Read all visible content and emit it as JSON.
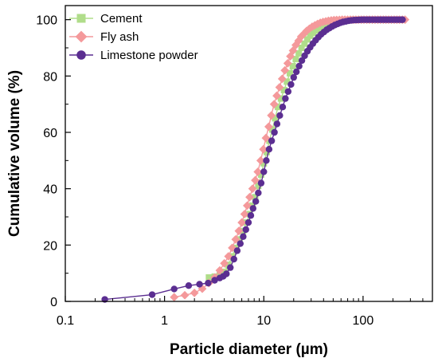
{
  "chart_data": {
    "type": "scatter",
    "title": "",
    "xlabel": "Particle diameter (µm)",
    "ylabel": "Cumulative volume (%)",
    "xscale": "log",
    "xlim": [
      0.1,
      500
    ],
    "ylim": [
      0,
      105
    ],
    "x_ticks": [
      {
        "value": 0.1,
        "label": "0.1"
      },
      {
        "value": 1,
        "label": "1"
      },
      {
        "value": 10,
        "label": "10"
      },
      {
        "value": 100,
        "label": "100"
      }
    ],
    "y_ticks": [
      {
        "value": 0,
        "label": "0"
      },
      {
        "value": 20,
        "label": "20"
      },
      {
        "value": 40,
        "label": "40"
      },
      {
        "value": 60,
        "label": "60"
      },
      {
        "value": 80,
        "label": "80"
      },
      {
        "value": 100,
        "label": "100"
      }
    ],
    "grid": false,
    "legend_position": "top-left",
    "series": [
      {
        "name": "Cement",
        "color": "#b0dd8a",
        "marker": "square",
        "points": [
          [
            2.8,
            8.5
          ],
          [
            3.2,
            8.8
          ],
          [
            3.6,
            9.3
          ],
          [
            4.0,
            10.5
          ],
          [
            4.4,
            13
          ],
          [
            4.8,
            16
          ],
          [
            5.2,
            19
          ],
          [
            5.7,
            22
          ],
          [
            6.2,
            25
          ],
          [
            6.7,
            28
          ],
          [
            7.2,
            31
          ],
          [
            7.7,
            34
          ],
          [
            8.2,
            37
          ],
          [
            8.8,
            41
          ],
          [
            9.4,
            45
          ],
          [
            10,
            49
          ],
          [
            10.7,
            53
          ],
          [
            11.4,
            57
          ],
          [
            12.2,
            61
          ],
          [
            13,
            65
          ],
          [
            13.9,
            69
          ],
          [
            14.9,
            72
          ],
          [
            16,
            75
          ],
          [
            17.1,
            78
          ],
          [
            18.3,
            81
          ],
          [
            19.6,
            83.5
          ],
          [
            21,
            86
          ],
          [
            22.5,
            88
          ],
          [
            24,
            90
          ],
          [
            25.7,
            91.5
          ],
          [
            27.5,
            93
          ],
          [
            29.4,
            94.3
          ],
          [
            31.5,
            95.3
          ],
          [
            33.7,
            96.2
          ],
          [
            36,
            97
          ],
          [
            38.5,
            97.6
          ],
          [
            41.2,
            98.1
          ],
          [
            44.1,
            98.5
          ],
          [
            47.2,
            98.9
          ],
          [
            50.5,
            99.2
          ],
          [
            54,
            99.4
          ],
          [
            57.8,
            99.6
          ],
          [
            61.8,
            99.75
          ],
          [
            66.1,
            99.85
          ],
          [
            70.7,
            99.9
          ],
          [
            75.6,
            99.95
          ],
          [
            80.9,
            100
          ],
          [
            86.6,
            100
          ],
          [
            92.6,
            100
          ],
          [
            99,
            100
          ],
          [
            106,
            100
          ],
          [
            113,
            100
          ],
          [
            121,
            100
          ],
          [
            130,
            100
          ],
          [
            139,
            100
          ],
          [
            148,
            100
          ],
          [
            159,
            100
          ],
          [
            170,
            100
          ],
          [
            182,
            100
          ],
          [
            194,
            100
          ],
          [
            208,
            100
          ],
          [
            222,
            100
          ],
          [
            238,
            100
          ],
          [
            254,
            100
          ]
        ]
      },
      {
        "name": "Fly ash",
        "color": "#f4999b",
        "marker": "diamond",
        "points": [
          [
            1.25,
            1.5
          ],
          [
            1.6,
            2.2
          ],
          [
            2.0,
            3.0
          ],
          [
            2.4,
            4.5
          ],
          [
            2.8,
            6.5
          ],
          [
            3.2,
            8.5
          ],
          [
            3.6,
            11
          ],
          [
            4.0,
            13.5
          ],
          [
            4.4,
            16
          ],
          [
            4.8,
            19
          ],
          [
            5.2,
            22
          ],
          [
            5.6,
            25
          ],
          [
            6.0,
            28
          ],
          [
            6.4,
            31
          ],
          [
            6.8,
            34
          ],
          [
            7.2,
            37
          ],
          [
            7.7,
            40
          ],
          [
            8.2,
            43
          ],
          [
            8.7,
            46
          ],
          [
            9.3,
            50
          ],
          [
            9.9,
            54
          ],
          [
            10.5,
            58
          ],
          [
            11.2,
            62
          ],
          [
            11.9,
            66
          ],
          [
            12.7,
            70
          ],
          [
            13.5,
            73
          ],
          [
            14.4,
            76
          ],
          [
            15.3,
            79
          ],
          [
            16.3,
            82
          ],
          [
            17.4,
            84.5
          ],
          [
            18.5,
            87
          ],
          [
            19.7,
            89
          ],
          [
            21,
            91
          ],
          [
            22.4,
            92.5
          ],
          [
            23.8,
            94
          ],
          [
            25.4,
            95
          ],
          [
            27,
            96
          ],
          [
            28.8,
            96.8
          ],
          [
            30.7,
            97.5
          ],
          [
            32.7,
            98
          ],
          [
            34.8,
            98.5
          ],
          [
            37.1,
            98.9
          ],
          [
            39.5,
            99.2
          ],
          [
            42.1,
            99.4
          ],
          [
            44.8,
            99.6
          ],
          [
            47.8,
            99.75
          ],
          [
            50.9,
            99.85
          ],
          [
            54.2,
            99.9
          ],
          [
            57.8,
            99.95
          ],
          [
            61.6,
            100
          ],
          [
            65.6,
            100
          ],
          [
            69.9,
            100
          ],
          [
            74.5,
            100
          ],
          [
            79.4,
            100
          ],
          [
            84.6,
            100
          ],
          [
            90.1,
            100
          ],
          [
            96,
            100
          ],
          [
            102,
            100
          ],
          [
            109,
            100
          ],
          [
            116,
            100
          ],
          [
            124,
            100
          ],
          [
            132,
            100
          ],
          [
            141,
            100
          ],
          [
            150,
            100
          ],
          [
            160,
            100
          ],
          [
            170,
            100
          ],
          [
            181,
            100
          ],
          [
            193,
            100
          ],
          [
            206,
            100
          ],
          [
            219,
            100
          ],
          [
            233,
            100
          ],
          [
            249,
            100
          ],
          [
            265,
            100
          ]
        ]
      },
      {
        "name": "Limestone powder",
        "color": "#5b2e91",
        "marker": "circle",
        "points": [
          [
            0.25,
            0.7
          ],
          [
            0.75,
            2.4
          ],
          [
            1.25,
            4.4
          ],
          [
            1.75,
            5.6
          ],
          [
            2.25,
            6.1
          ],
          [
            2.75,
            6.5
          ],
          [
            3.2,
            7.5
          ],
          [
            3.6,
            8.3
          ],
          [
            3.9,
            8.9
          ],
          [
            4.2,
            9.8
          ],
          [
            4.6,
            12
          ],
          [
            5.0,
            15
          ],
          [
            5.4,
            18
          ],
          [
            5.8,
            20.5
          ],
          [
            6.2,
            23
          ],
          [
            6.6,
            25.5
          ],
          [
            7.0,
            28
          ],
          [
            7.4,
            30.5
          ],
          [
            7.8,
            33
          ],
          [
            8.3,
            35.5
          ],
          [
            8.8,
            38.5
          ],
          [
            9.4,
            42
          ],
          [
            10,
            46
          ],
          [
            10.6,
            50
          ],
          [
            11.3,
            54
          ],
          [
            12,
            57
          ],
          [
            12.8,
            60
          ],
          [
            13.6,
            63
          ],
          [
            14.5,
            66
          ],
          [
            15.5,
            69
          ],
          [
            16.5,
            72
          ],
          [
            17.6,
            74.5
          ],
          [
            18.8,
            77
          ],
          [
            20,
            79.5
          ],
          [
            21.3,
            81.5
          ],
          [
            22.7,
            83.5
          ],
          [
            24.2,
            85.5
          ],
          [
            25.8,
            87.2
          ],
          [
            27.5,
            88.8
          ],
          [
            29.3,
            90.2
          ],
          [
            31.2,
            91.5
          ],
          [
            33.3,
            92.7
          ],
          [
            35.5,
            93.8
          ],
          [
            37.8,
            94.8
          ],
          [
            40.3,
            95.6
          ],
          [
            43,
            96.4
          ],
          [
            45.8,
            97
          ],
          [
            48.8,
            97.6
          ],
          [
            52,
            98.1
          ],
          [
            55.5,
            98.5
          ],
          [
            59.1,
            98.9
          ],
          [
            63,
            99.2
          ],
          [
            67.2,
            99.4
          ],
          [
            71.6,
            99.6
          ],
          [
            76.3,
            99.75
          ],
          [
            81.4,
            99.85
          ],
          [
            86.7,
            99.9
          ],
          [
            92.4,
            99.95
          ],
          [
            98.5,
            100
          ],
          [
            105,
            100
          ],
          [
            112,
            100
          ],
          [
            119,
            100
          ],
          [
            127,
            100
          ],
          [
            136,
            100
          ],
          [
            145,
            100
          ],
          [
            154,
            100
          ],
          [
            164,
            100
          ],
          [
            175,
            100
          ],
          [
            187,
            100
          ],
          [
            199,
            100
          ],
          [
            212,
            100
          ],
          [
            226,
            100
          ],
          [
            241,
            100
          ],
          [
            250,
            100
          ]
        ]
      }
    ]
  }
}
